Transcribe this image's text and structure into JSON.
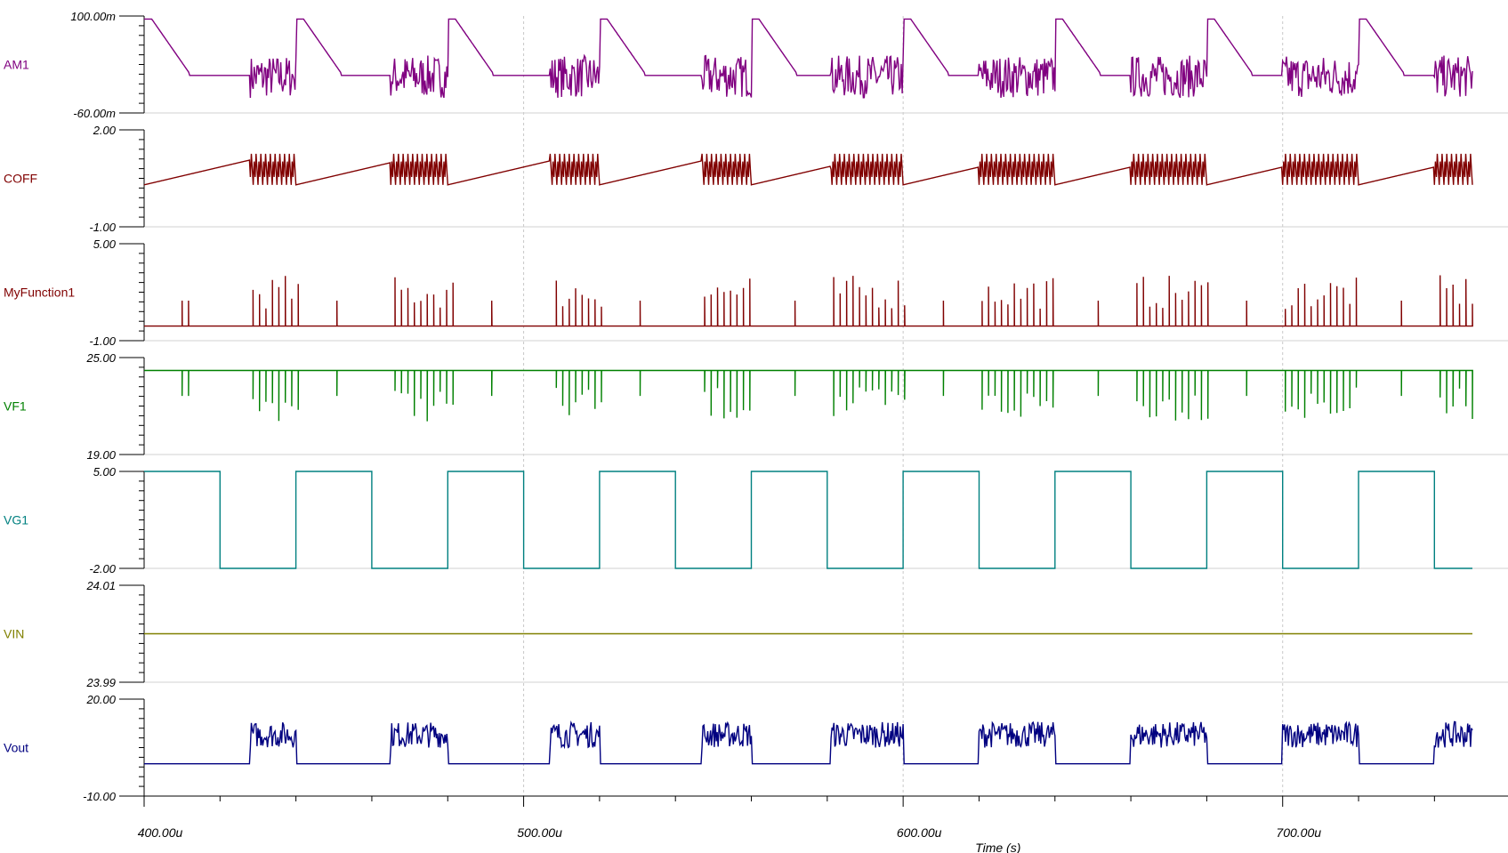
{
  "chart_data": {
    "type": "line",
    "title": "",
    "xlabel": "Time (s)",
    "x_unit": "u",
    "xlim": [
      400,
      750
    ],
    "x_ticks": [
      "400.00u",
      "500.00u",
      "600.00u",
      "700.00u"
    ],
    "grid": true,
    "legend": "none",
    "panels": [
      {
        "name": "AM1",
        "color": "#800080",
        "ymax_label": "100.00m",
        "ymin_label": "-60.00m",
        "ylim": [
          -60,
          100
        ],
        "y_unit": "m",
        "description": "inductor current: ramps with high-frequency switching bursts"
      },
      {
        "name": "COFF",
        "color": "#800000",
        "ymax_label": "2.00",
        "ymin_label": "-1.00",
        "ylim": [
          -1,
          2
        ]
      },
      {
        "name": "MyFunction1",
        "color": "#800000",
        "ymax_label": "5.00",
        "ymin_label": "-1.00",
        "ylim": [
          -1,
          5
        ]
      },
      {
        "name": "VF1",
        "color": "#008000",
        "ymax_label": "25.00",
        "ymin_label": "19.00",
        "ylim": [
          19,
          25
        ]
      },
      {
        "name": "VG1",
        "color": "#008080",
        "ymax_label": "5.00",
        "ymin_label": "-2.00",
        "ylim": [
          -2,
          5
        ],
        "square_wave": {
          "high": 5,
          "low": -2,
          "period_us": 40,
          "duty": 0.5,
          "first_rise_us": 400
        }
      },
      {
        "name": "VIN",
        "color": "#808000",
        "ymax_label": "24.01",
        "ymin_label": "23.99",
        "ylim": [
          23.99,
          24.01
        ],
        "constant": 24.0
      },
      {
        "name": "Vout",
        "color": "#000080",
        "ymax_label": "20.00",
        "ymin_label": "-10.00",
        "ylim": [
          -10,
          20
        ]
      }
    ],
    "burst_windows_us": [
      [
        428,
        440
      ],
      [
        465,
        480
      ],
      [
        507,
        520
      ],
      [
        547,
        560
      ],
      [
        581,
        600
      ],
      [
        620,
        640
      ],
      [
        660,
        680
      ],
      [
        700,
        720
      ],
      [
        740,
        750
      ]
    ]
  }
}
